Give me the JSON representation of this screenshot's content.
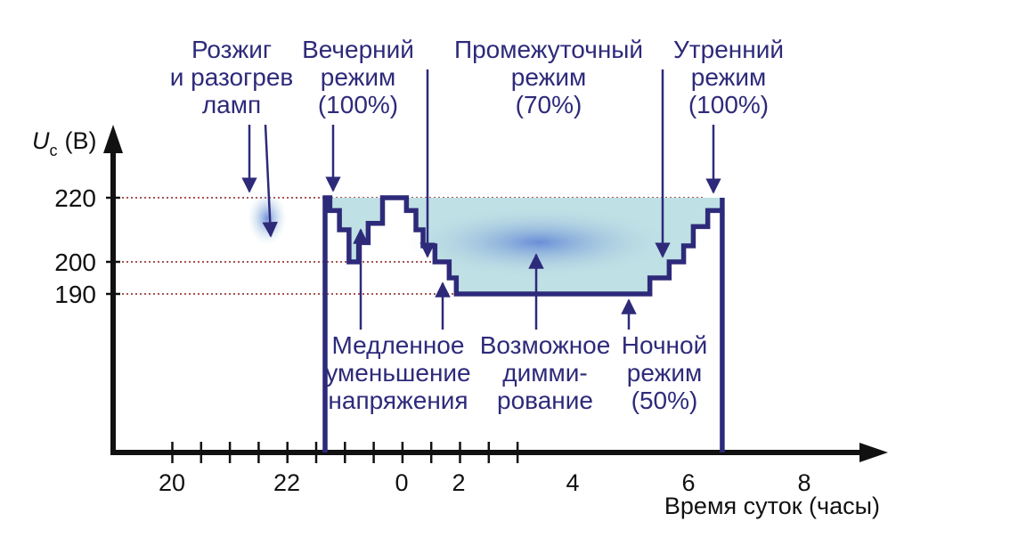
{
  "chart_data": {
    "type": "line",
    "ylabel": "U",
    "ylabel_sub": "c",
    "ylabel_unit": "(В)",
    "xlabel": "Время суток (часы)",
    "x_ticks": [
      "20",
      "22",
      "0",
      "2",
      "4",
      "6",
      "8"
    ],
    "y_ticks": [
      "220",
      "200",
      "190"
    ],
    "y_tick_values": [
      220,
      200,
      190
    ],
    "grid": "dotted reference lines at 220, 200 and 190 V",
    "series": [
      {
        "x": [
          "22:40",
          "22:40",
          "22:45",
          "22:45",
          "22:55",
          "22:55",
          "23:05",
          "23:05",
          "23:15",
          "23:15",
          "23:25",
          "23:25",
          "23:40",
          "23:40",
          "0:10",
          "0:10",
          "0:30",
          "0:30",
          "0:45",
          "0:45",
          "1:10",
          "1:10",
          "1:40",
          "1:40",
          "1:55",
          "1:55",
          "5:20",
          "5:20",
          "5:40",
          "5:40",
          "5:55",
          "5:55",
          "6:05",
          "6:05",
          "6:20",
          "6:20",
          "6:35",
          "6:35"
        ],
        "y": [
          0,
          220,
          220,
          216,
          216,
          210,
          210,
          200,
          200,
          206,
          206,
          212,
          212,
          220,
          220,
          216,
          216,
          210,
          210,
          205,
          205,
          200,
          200,
          195,
          195,
          190,
          190,
          195,
          195,
          200,
          200,
          205,
          205,
          211,
          211,
          216,
          216,
          220
        ],
        "end_drop_to": 0
      }
    ],
    "annotations": [
      {
        "lines": [
          "Розжиг",
          "и разогрев",
          "ламп"
        ]
      },
      {
        "lines": [
          "Вечерний",
          "режим",
          "(100%)"
        ]
      },
      {
        "lines": [
          "Промежуточный",
          "режим",
          "(70%)"
        ]
      },
      {
        "lines": [
          "Утренний",
          "режим",
          "(100%)"
        ]
      },
      {
        "lines": [
          "Медленное",
          "уменьшение",
          "напряжения"
        ]
      },
      {
        "lines": [
          "Возможное",
          "димми-",
          "рование"
        ]
      },
      {
        "lines": [
          "Ночной",
          "режим",
          "(50%)"
        ]
      }
    ],
    "colors": {
      "line": "#2e2a7a",
      "text": "#2e2a7a",
      "axis": "#111111",
      "grid": "#8b1a1a",
      "fill_light": "#bfe0e4",
      "fill_dark": "#5a7fd6"
    }
  }
}
